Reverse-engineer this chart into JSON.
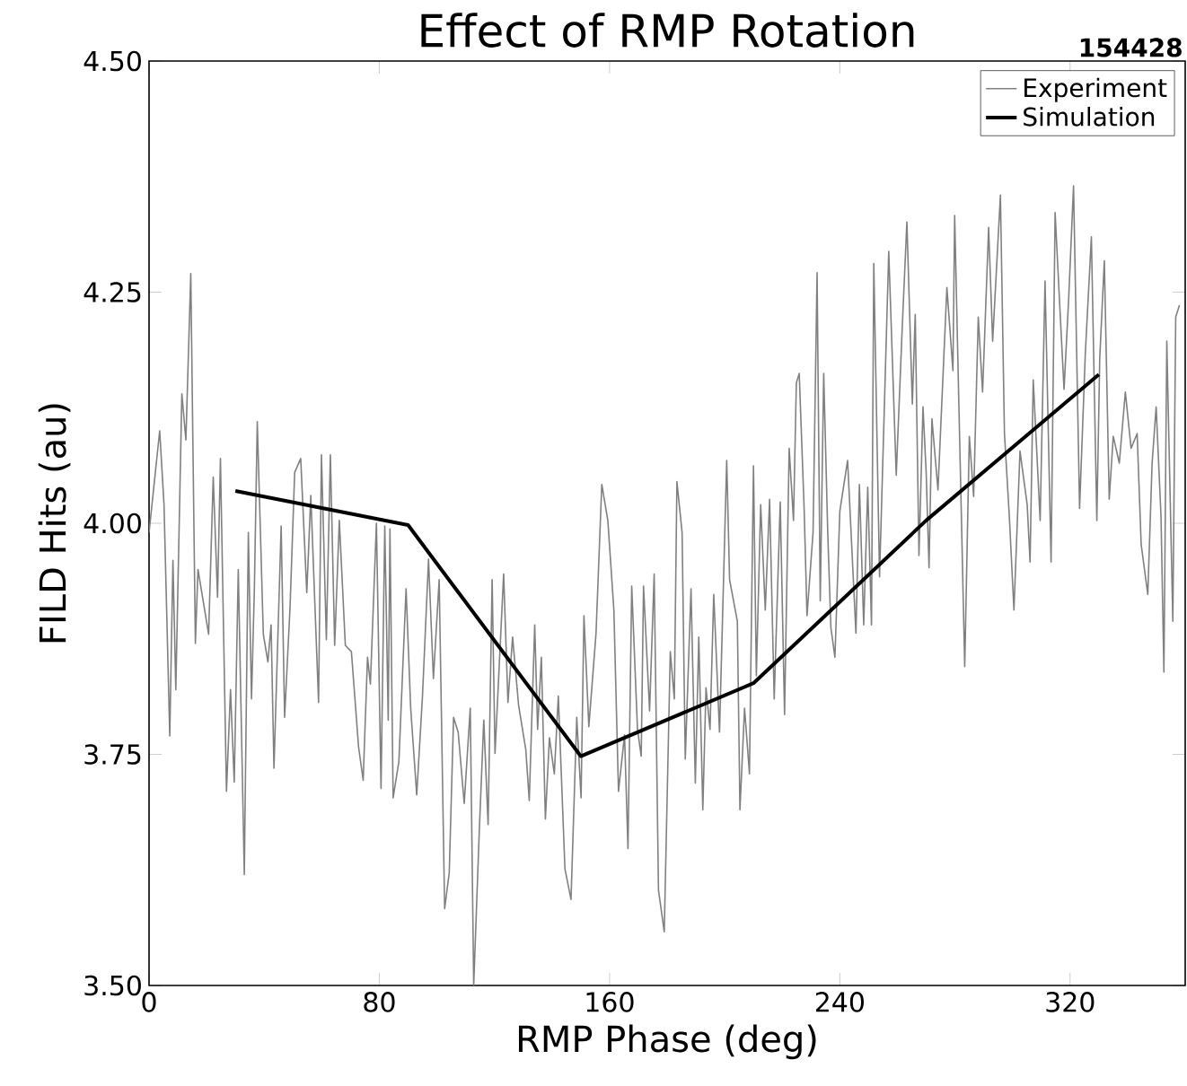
{
  "chart_data": {
    "type": "line",
    "title": "Effect of RMP Rotation",
    "xlabel": "RMP Phase (deg)",
    "ylabel": "FILD Hits (au)",
    "annotations": [
      "**154428**"
    ],
    "xlim": [
      0,
      360
    ],
    "ylim": [
      3.5,
      4.5
    ],
    "xticks": [
      0,
      80,
      160,
      240,
      320
    ],
    "yticks": [
      {
        "value": 3.5,
        "label": "3.50"
      },
      {
        "value": 3.75,
        "label": "3.75"
      },
      {
        "value": 4.0,
        "label": "4.00"
      },
      {
        "value": 4.25,
        "label": "4.25"
      },
      {
        "value": 4.5,
        "label": "4.50"
      }
    ],
    "legend": "top right",
    "grid": false,
    "series": [
      {
        "name": "Experiment",
        "color": "#808080",
        "x": [
          0,
          3.7,
          5.2,
          7.2,
          8.3,
          9.3,
          11.4,
          12.8,
          14.5,
          16.1,
          17.0,
          20.7,
          22.3,
          23.8,
          24.8,
          26.9,
          28.3,
          29.6,
          31.0,
          33.1,
          34.5,
          35.6,
          36.6,
          37.6,
          39.7,
          41.3,
          42.4,
          43.4,
          45.9,
          47.1,
          49.0,
          50.6,
          52.7,
          54.8,
          56.2,
          58.9,
          59.9,
          61.6,
          63.0,
          64.5,
          66.1,
          68.2,
          70.3,
          72.8,
          74.4,
          75.9,
          76.9,
          79.0,
          80.6,
          81.9,
          83.1,
          83.7,
          84.8,
          86.8,
          89.3,
          90.9,
          93.0,
          95.0,
          97.1,
          98.8,
          100.8,
          102.7,
          104.3,
          105.8,
          107.4,
          109.5,
          111.6,
          112.8,
          114.7,
          116.3,
          117.8,
          119.2,
          120.2,
          123.2,
          124.7,
          126.3,
          128.4,
          130.9,
          132.1,
          134.0,
          135.0,
          136.3,
          137.7,
          139.1,
          140.8,
          142.2,
          144.5,
          146.6,
          148.6,
          150.1,
          151.1,
          152.8,
          155.3,
          157.3,
          159.4,
          161.5,
          163.1,
          165.2,
          166.4,
          167.7,
          169.7,
          171.0,
          171.8,
          173.9,
          175.5,
          177.0,
          179.0,
          181.1,
          182.5,
          183.4,
          185.2,
          186.3,
          188.3,
          189.8,
          191.0,
          192.4,
          193.5,
          194.9,
          196.2,
          198.2,
          200.7,
          201.7,
          204.4,
          205.3,
          206.9,
          208.6,
          210.0,
          211.0,
          212.5,
          214.1,
          215.6,
          217.2,
          219.3,
          220.8,
          222.4,
          223.9,
          224.9,
          225.9,
          227.6,
          228.6,
          230.7,
          232.1,
          233.2,
          234.4,
          235.8,
          236.9,
          238.3,
          240.0,
          242.7,
          245.6,
          246.8,
          248.3,
          249.7,
          251.0,
          251.8,
          253.8,
          257.0,
          259.6,
          261.7,
          263.3,
          265.2,
          266.2,
          267.5,
          268.9,
          270.0,
          271.0,
          272.0,
          274.1,
          277.2,
          279.3,
          279.9,
          283.4,
          285.0,
          286.5,
          288.1,
          289.6,
          291.7,
          293.1,
          295.8,
          297.2,
          298.9,
          300.5,
          302.6,
          305.1,
          306.1,
          307.2,
          309.6,
          311.3,
          313.4,
          314.8,
          316.4,
          317.9,
          319.5,
          321.2,
          323.3,
          325.3,
          327.4,
          329.3,
          330.3,
          331.9,
          333.6,
          335.0,
          337.1,
          339.2,
          341.2,
          343.3,
          344.7,
          347.0,
          348.5,
          349.9,
          351.6,
          352.6,
          353.6,
          355.7,
          356.7,
          358.0
        ],
        "values": [
          3.99,
          4.1,
          4.02,
          3.77,
          3.96,
          3.82,
          4.14,
          4.09,
          4.27,
          3.87,
          3.95,
          3.88,
          4.05,
          3.92,
          4.07,
          3.71,
          3.82,
          3.72,
          3.95,
          3.62,
          3.99,
          3.81,
          3.93,
          4.11,
          3.88,
          3.85,
          3.89,
          3.735,
          3.997,
          3.79,
          3.91,
          4.055,
          4.07,
          3.925,
          4.03,
          3.806,
          4.074,
          3.874,
          4.074,
          3.868,
          4.003,
          3.868,
          3.861,
          3.758,
          3.722,
          3.855,
          3.826,
          4.0,
          3.713,
          3.997,
          3.787,
          3.994,
          3.703,
          3.742,
          3.929,
          3.8,
          3.706,
          3.813,
          3.961,
          3.832,
          3.939,
          3.583,
          3.622,
          3.79,
          3.774,
          3.697,
          3.8,
          3.5,
          3.664,
          3.787,
          3.674,
          3.939,
          3.751,
          3.945,
          3.806,
          3.877,
          3.803,
          3.755,
          3.7,
          3.89,
          3.777,
          3.855,
          3.68,
          3.768,
          3.729,
          3.813,
          3.626,
          3.593,
          3.79,
          3.703,
          3.9,
          3.78,
          3.881,
          4.042,
          4.003,
          3.906,
          3.71,
          3.771,
          3.648,
          3.932,
          3.777,
          3.748,
          3.932,
          3.797,
          3.945,
          3.603,
          3.558,
          3.861,
          3.81,
          4.045,
          3.99,
          3.745,
          3.929,
          3.719,
          3.877,
          3.69,
          3.822,
          3.777,
          3.923,
          3.774,
          4.068,
          3.939,
          3.894,
          3.69,
          3.8,
          3.729,
          4.062,
          3.835,
          4.02,
          3.906,
          4.026,
          3.81,
          4.023,
          3.793,
          4.081,
          4.003,
          4.152,
          4.162,
          4.016,
          3.9,
          3.99,
          4.271,
          3.916,
          4.162,
          3.99,
          3.887,
          3.855,
          4.013,
          4.068,
          3.881,
          4.042,
          3.89,
          4.039,
          3.89,
          4.281,
          3.942,
          4.294,
          4.052,
          4.213,
          4.326,
          4.129,
          4.226,
          3.965,
          4.126,
          4.055,
          3.952,
          4.113,
          4.036,
          4.255,
          4.165,
          4.333,
          3.845,
          4.094,
          4.029,
          4.223,
          4.142,
          4.32,
          4.197,
          4.355,
          4.097,
          4.007,
          3.906,
          4.078,
          4.02,
          3.958,
          4.155,
          4.003,
          4.262,
          3.958,
          4.336,
          4.236,
          4.145,
          4.242,
          4.365,
          4.016,
          4.184,
          4.31,
          4.003,
          4.178,
          4.284,
          4.026,
          4.094,
          4.065,
          4.142,
          4.081,
          4.097,
          3.977,
          3.923,
          4.065,
          4.126,
          4.007,
          3.839,
          4.197,
          3.894,
          4.223,
          4.236
        ]
      },
      {
        "name": "Simulation",
        "color": "#000000",
        "x": [
          30,
          90,
          150,
          210,
          270,
          330
        ],
        "values": [
          4.035,
          3.998,
          3.748,
          3.827,
          4.003,
          4.161
        ]
      }
    ]
  }
}
